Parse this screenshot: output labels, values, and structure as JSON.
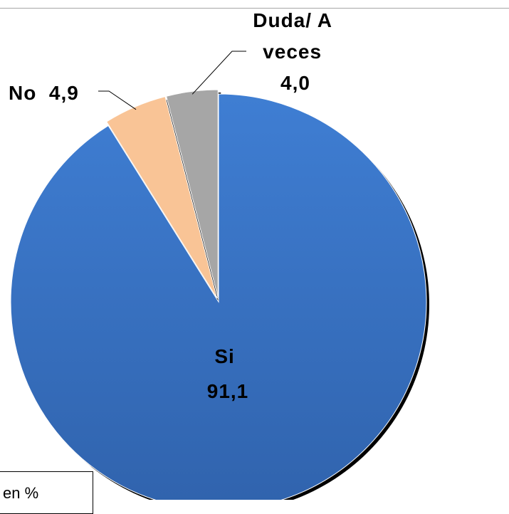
{
  "chart_data": {
    "type": "pie",
    "slices": [
      {
        "key": "si",
        "label": "Si",
        "value": 91.1,
        "value_text": "91,1",
        "color": "#3a72c4"
      },
      {
        "key": "no",
        "label": "No",
        "value": 4.9,
        "value_text": "4,9",
        "color": "#f9c496"
      },
      {
        "key": "duda",
        "label": "Duda/ A veces",
        "value": 4.0,
        "value_text": "4,0",
        "color": "#a6a6a6"
      }
    ],
    "label_lines": {
      "si": [
        "Si",
        "91,1"
      ],
      "no": [
        "No  4,9"
      ],
      "duda": [
        "Duda/ A",
        "veces",
        "4,0"
      ]
    },
    "unit_note": "en %"
  }
}
